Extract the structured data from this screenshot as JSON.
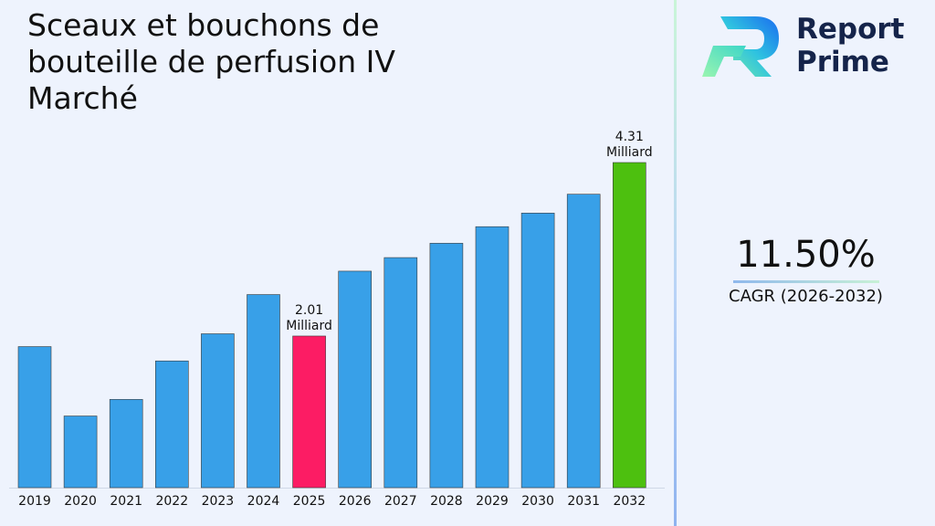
{
  "title": "Sceaux et bouchons de bouteille de perfusion IV Marché",
  "brand": {
    "line1": "Report",
    "line2": "Prime",
    "logo_icon": "report-prime-logo-icon"
  },
  "cagr": {
    "value": "11.50%",
    "label": "CAGR (2026-2032)"
  },
  "colors": {
    "bar": "#38a0e8",
    "highlight_2025": "#fc1c64",
    "highlight_2032": "#4dc00f",
    "background": "#eef3fd"
  },
  "chart_data": {
    "type": "bar",
    "categories": [
      "2019",
      "2020",
      "2021",
      "2022",
      "2023",
      "2024",
      "2025",
      "2026",
      "2027",
      "2028",
      "2029",
      "2030",
      "2031",
      "2032"
    ],
    "values": [
      1.87,
      0.95,
      1.17,
      1.68,
      2.04,
      2.56,
      2.01,
      2.87,
      3.05,
      3.24,
      3.46,
      3.64,
      3.89,
      4.31
    ],
    "bar_colors": [
      "#38a0e8",
      "#38a0e8",
      "#38a0e8",
      "#38a0e8",
      "#38a0e8",
      "#38a0e8",
      "#fc1c64",
      "#38a0e8",
      "#38a0e8",
      "#38a0e8",
      "#38a0e8",
      "#38a0e8",
      "#38a0e8",
      "#4dc00f"
    ],
    "annotations": [
      {
        "category": "2025",
        "value_text": "2.01",
        "unit_text": "Milliard"
      },
      {
        "category": "2032",
        "value_text": "4.31",
        "unit_text": "Milliard"
      }
    ],
    "grid": false,
    "legend": "none"
  }
}
